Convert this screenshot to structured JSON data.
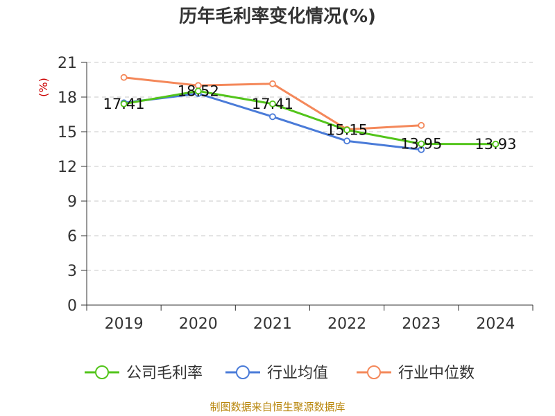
{
  "chart_data": {
    "type": "line",
    "title": "历年毛利率变化情况(%)",
    "ylabel": "(%)",
    "xlabel": "",
    "categories": [
      "2019",
      "2020",
      "2021",
      "2022",
      "2023",
      "2024"
    ],
    "ylim": [
      0,
      21
    ],
    "yticks": [
      0,
      3,
      6,
      9,
      12,
      15,
      18,
      21
    ],
    "grid": true,
    "legend_position": "bottom",
    "series": [
      {
        "name": "公司毛利率",
        "color": "#52c41a",
        "values": [
          17.41,
          18.52,
          17.41,
          15.15,
          13.95,
          13.93
        ],
        "data_labels": [
          "17.41",
          "18.52",
          "17.41",
          "15.15",
          "13.95",
          "13.93"
        ]
      },
      {
        "name": "行业均值",
        "color": "#4a7bd8",
        "values": [
          17.5,
          18.3,
          16.3,
          14.2,
          13.45,
          null
        ],
        "data_labels": null
      },
      {
        "name": "行业中位数",
        "color": "#f4885a",
        "values": [
          19.7,
          19.0,
          19.15,
          15.2,
          15.55,
          null
        ],
        "data_labels": null
      }
    ]
  },
  "source": "制图数据来自恒生聚源数据库"
}
